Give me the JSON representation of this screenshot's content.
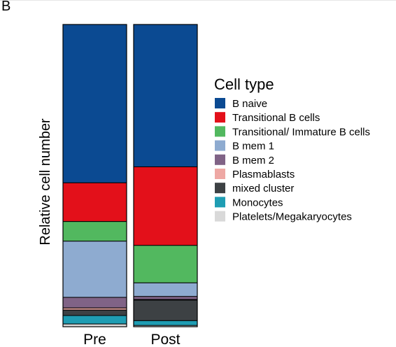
{
  "panel_label": "B",
  "chart_data": {
    "type": "bar",
    "stacked": true,
    "normalized": true,
    "xlabel": "",
    "ylabel": "Relative cell number",
    "ylim": [
      0,
      1
    ],
    "grid": false,
    "legend_title": "Cell type",
    "legend_position": "right",
    "categories": [
      "Pre",
      "Post"
    ],
    "stack_order": "top-to-bottom as listed",
    "series": [
      {
        "name": "B naive",
        "color": "#0b4a92",
        "values": [
          0.524,
          0.471
        ]
      },
      {
        "name": "Transitional B cells",
        "color": "#e3101a",
        "values": [
          0.128,
          0.26
        ]
      },
      {
        "name": "Transitional/ Immature B cells",
        "color": "#52b85f",
        "values": [
          0.065,
          0.124
        ]
      },
      {
        "name": "B mem 1",
        "color": "#8eabd0",
        "values": [
          0.186,
          0.045
        ]
      },
      {
        "name": "B mem 2",
        "color": "#806386",
        "values": [
          0.035,
          0.01
        ]
      },
      {
        "name": "Plasmablasts",
        "color": "#eea8a4",
        "values": [
          0.007,
          0.002
        ]
      },
      {
        "name": "mixed cluster",
        "color": "#3d4144",
        "values": [
          0.018,
          0.068
        ]
      },
      {
        "name": "Monocytes",
        "color": "#1f9db3",
        "values": [
          0.028,
          0.016
        ]
      },
      {
        "name": "Platelets/Megakaryocytes",
        "color": "#d9d9d9",
        "values": [
          0.009,
          0.004
        ]
      }
    ]
  }
}
